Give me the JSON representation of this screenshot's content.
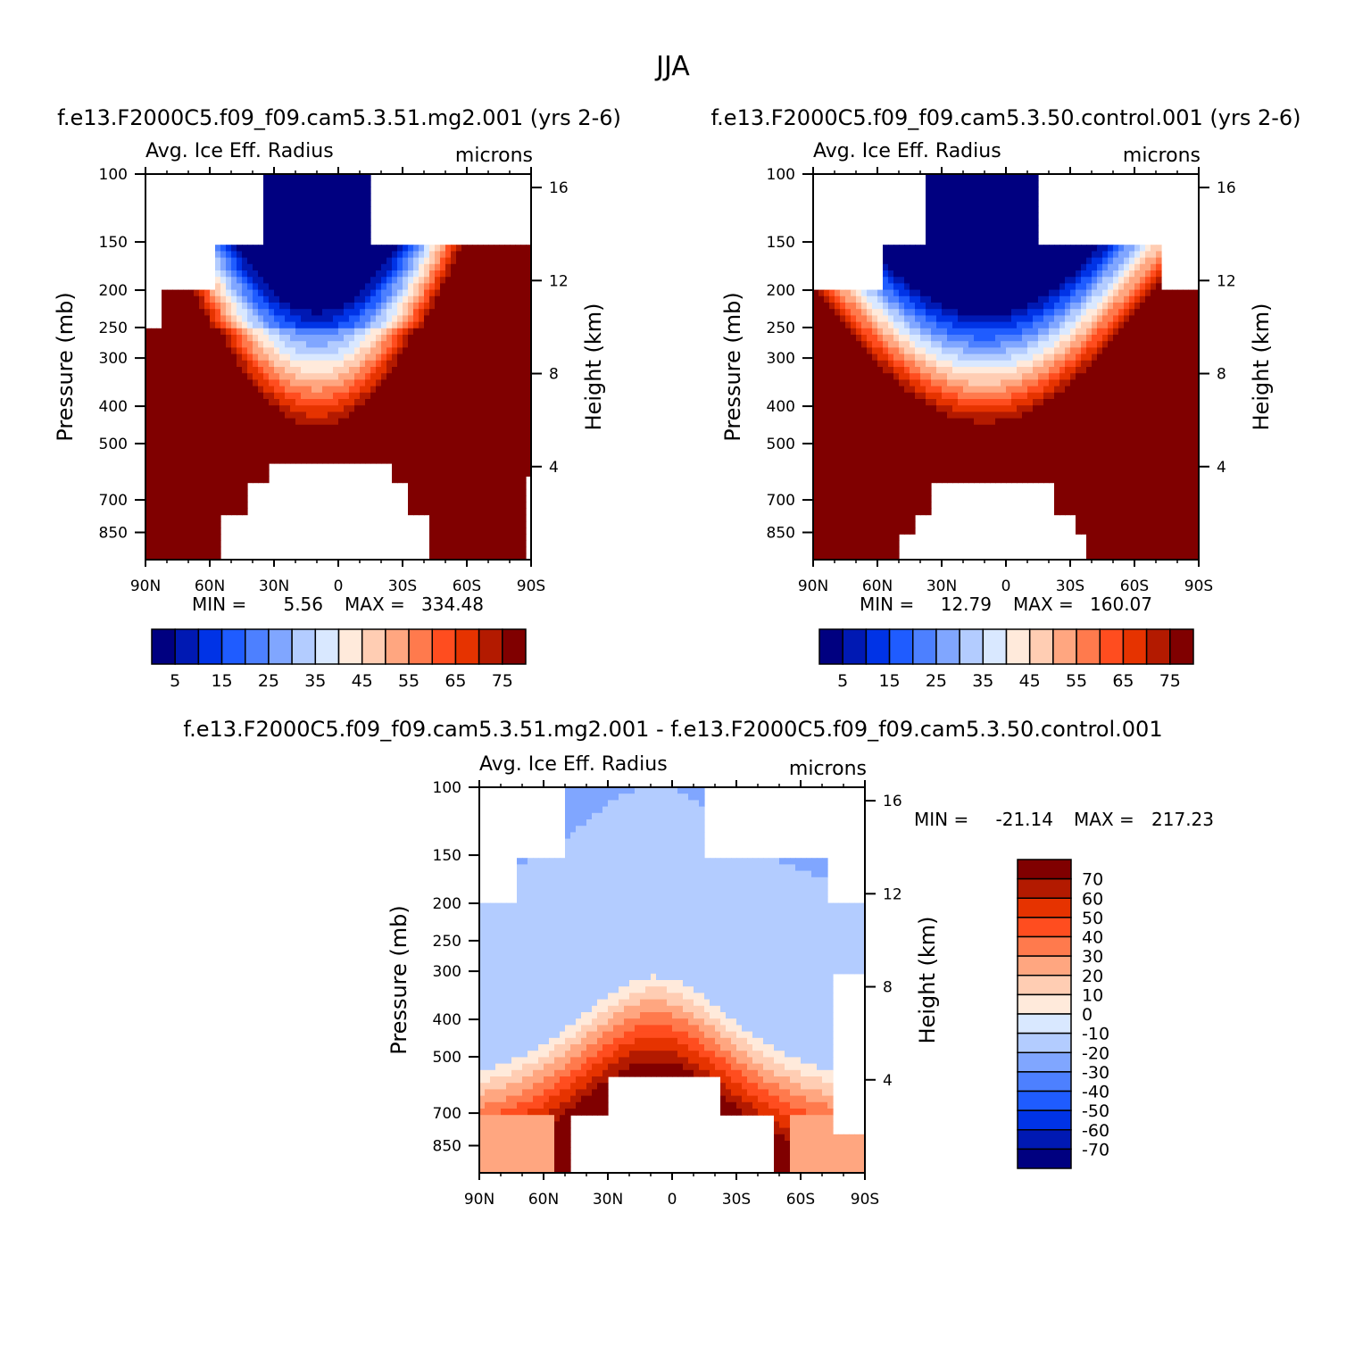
{
  "page_title": "JJA",
  "palette": {
    "abs": [
      "#000080",
      "#0019b3",
      "#0033e6",
      "#1f5cff",
      "#4d80ff",
      "#80a6ff",
      "#b3ccff",
      "#d9e8ff",
      "#ffeadb",
      "#ffcdb3",
      "#ffa680",
      "#ff7a4d",
      "#ff4d1f",
      "#e63300",
      "#b31a00",
      "#800000"
    ],
    "diff": [
      "#000080",
      "#0019b3",
      "#0033e6",
      "#1f5cff",
      "#4d80ff",
      "#80a6ff",
      "#b3ccff",
      "#d9e8ff",
      "#ffeadb",
      "#ffcdb3",
      "#ffa680",
      "#ff7a4d",
      "#ff4d1f",
      "#e63300",
      "#b31a00",
      "#800000"
    ]
  },
  "chart_data": [
    {
      "type": "heatmap",
      "id": "panel1",
      "title": "f.e13.F2000C5.f09_f09.cam5.3.51.mg2.001 (yrs 2-6)",
      "left_label": "Avg. Ice Eff. Radius",
      "right_label": "microns",
      "xlabel": "",
      "ylabel": "Pressure (mb)",
      "y2label": "Height (km)",
      "xticks": [
        "90N",
        "60N",
        "30N",
        "0",
        "30S",
        "60S",
        "90S"
      ],
      "yticks": [
        "100",
        "150",
        "200",
        "250",
        "300",
        "400",
        "500",
        "700",
        "850"
      ],
      "y2ticks": [
        "16",
        "12",
        "8",
        "4"
      ],
      "stats": {
        "min_label": "MIN =",
        "min": "5.56",
        "max_label": "MAX =",
        "max": "334.48"
      },
      "colorbar_labels": [
        "5",
        "15",
        "25",
        "35",
        "45",
        "55",
        "65",
        "75"
      ],
      "levels": [
        5,
        10,
        15,
        20,
        25,
        30,
        35,
        40,
        45,
        50,
        55,
        60,
        65,
        70,
        75
      ],
      "x_range": [
        -90,
        90
      ],
      "y_range_mb": [
        100,
        1000
      ]
    },
    {
      "type": "heatmap",
      "id": "panel2",
      "title": "f.e13.F2000C5.f09_f09.cam5.3.50.control.001 (yrs 2-6)",
      "left_label": "Avg. Ice Eff. Radius",
      "right_label": "microns",
      "xlabel": "",
      "ylabel": "Pressure (mb)",
      "y2label": "Height (km)",
      "xticks": [
        "90N",
        "60N",
        "30N",
        "0",
        "30S",
        "60S",
        "90S"
      ],
      "yticks": [
        "100",
        "150",
        "200",
        "250",
        "300",
        "400",
        "500",
        "700",
        "850"
      ],
      "y2ticks": [
        "16",
        "12",
        "8",
        "4"
      ],
      "stats": {
        "min_label": "MIN =",
        "min": "12.79",
        "max_label": "MAX =",
        "max": "160.07"
      },
      "colorbar_labels": [
        "5",
        "15",
        "25",
        "35",
        "45",
        "55",
        "65",
        "75"
      ],
      "levels": [
        5,
        10,
        15,
        20,
        25,
        30,
        35,
        40,
        45,
        50,
        55,
        60,
        65,
        70,
        75
      ],
      "x_range": [
        -90,
        90
      ],
      "y_range_mb": [
        100,
        1000
      ]
    },
    {
      "type": "heatmap",
      "id": "panel3",
      "title": "f.e13.F2000C5.f09_f09.cam5.3.51.mg2.001 - f.e13.F2000C5.f09_f09.cam5.3.50.control.001",
      "left_label": "Avg. Ice Eff. Radius",
      "right_label": "microns",
      "xlabel": "",
      "ylabel": "Pressure (mb)",
      "y2label": "Height (km)",
      "xticks": [
        "90N",
        "60N",
        "30N",
        "0",
        "30S",
        "60S",
        "90S"
      ],
      "yticks": [
        "100",
        "150",
        "200",
        "250",
        "300",
        "400",
        "500",
        "700",
        "850"
      ],
      "y2ticks": [
        "16",
        "12",
        "8",
        "4"
      ],
      "stats": {
        "min_label": "MIN =",
        "min": "-21.14",
        "max_label": "MAX =",
        "max": "217.23"
      },
      "colorbar_labels": [
        "70",
        "60",
        "50",
        "40",
        "30",
        "20",
        "10",
        "0",
        "-10",
        "-20",
        "-30",
        "-40",
        "-50",
        "-60",
        "-70"
      ],
      "levels": [
        -70,
        -60,
        -50,
        -40,
        -30,
        -20,
        -10,
        0,
        10,
        20,
        30,
        40,
        50,
        60,
        70
      ],
      "x_range": [
        -90,
        90
      ],
      "y_range_mb": [
        100,
        1000
      ]
    }
  ]
}
